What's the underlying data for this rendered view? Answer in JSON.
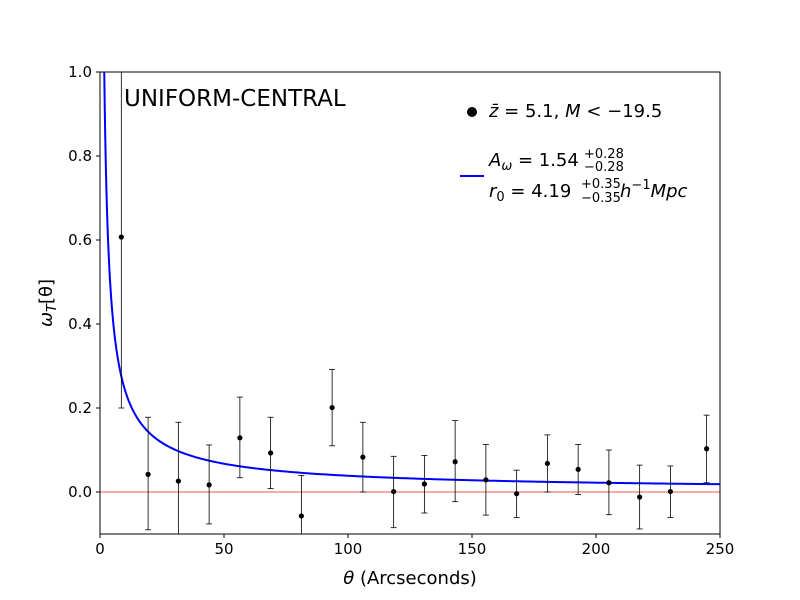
{
  "chart_data": {
    "type": "scatter",
    "panel_label": "UNIFORM-CENTRAL",
    "xlabel_symbol": "θ",
    "xlabel_text": " (Arcseconds)",
    "ylabel_main": "ω",
    "ylabel_sub": "T",
    "ylabel_tail": "[θ]",
    "xlim": [
      0,
      250
    ],
    "ylim": [
      -0.1,
      1.0
    ],
    "x_ticks": [
      0,
      50,
      100,
      150,
      200,
      250
    ],
    "x_tick_labels": [
      "0",
      "50",
      "100",
      "150",
      "200",
      "250"
    ],
    "y_ticks": [
      0.0,
      0.2,
      0.4,
      0.6,
      0.8,
      1.0
    ],
    "y_tick_labels": [
      "0.0",
      "0.2",
      "0.4",
      "0.6",
      "0.8",
      "1.0"
    ],
    "grid": false,
    "reference_line": {
      "y": 0,
      "color": "#e8574a"
    },
    "series": [
      {
        "kind": "points_with_errorbars",
        "color": "#000000",
        "x": [
          8.6,
          19.4,
          31.6,
          44.0,
          56.4,
          68.8,
          81.2,
          93.6,
          106.0,
          118.4,
          130.8,
          143.2,
          155.6,
          168.0,
          180.4,
          192.8,
          205.2,
          217.6,
          230.0,
          244.6
        ],
        "y": [
          0.607,
          0.042,
          0.026,
          0.017,
          0.129,
          0.093,
          -0.057,
          0.201,
          0.083,
          0.001,
          0.019,
          0.072,
          0.029,
          -0.004,
          0.068,
          0.054,
          0.022,
          -0.012,
          0.001,
          0.103
        ],
        "err_low": [
          0.407,
          0.132,
          0.146,
          0.093,
          0.095,
          0.085,
          0.043,
          0.091,
          0.083,
          0.086,
          0.069,
          0.095,
          0.084,
          0.057,
          0.068,
          0.06,
          0.076,
          0.076,
          0.062,
          0.081
        ],
        "err_high": [
          0.393,
          0.136,
          0.14,
          0.095,
          0.097,
          0.085,
          0.096,
          0.091,
          0.083,
          0.084,
          0.068,
          0.098,
          0.084,
          0.056,
          0.068,
          0.059,
          0.078,
          0.076,
          0.061,
          0.08
        ]
      },
      {
        "kind": "power_law_fit",
        "color": "#0000ff",
        "model": "A * x^(-0.8)",
        "A": 1.54,
        "exponent": -0.8,
        "x_range": [
          1.0,
          250
        ]
      }
    ],
    "legend": {
      "position": "upper-right",
      "entries": [
        {
          "marker": "dot",
          "color": "#000000",
          "zbar": "z̄",
          "z_text": " = 5.1,  ",
          "m_symbol": "M",
          "m_text": " < −19.5"
        },
        {
          "marker": "line",
          "color": "#0000ff",
          "a_main": "A",
          "a_sub": "ω",
          "a_value": " = 1.54",
          "a_up": "+0.28",
          "a_down": "−0.28",
          "r_main": "r",
          "r_sub": "0",
          "r_value": " = 4.19",
          "r_up": "+0.35",
          "r_down": "−0.35",
          "r_unit_h": "h",
          "r_unit_exp": "−1",
          "r_unit_rest": "Mpc"
        }
      ]
    }
  }
}
